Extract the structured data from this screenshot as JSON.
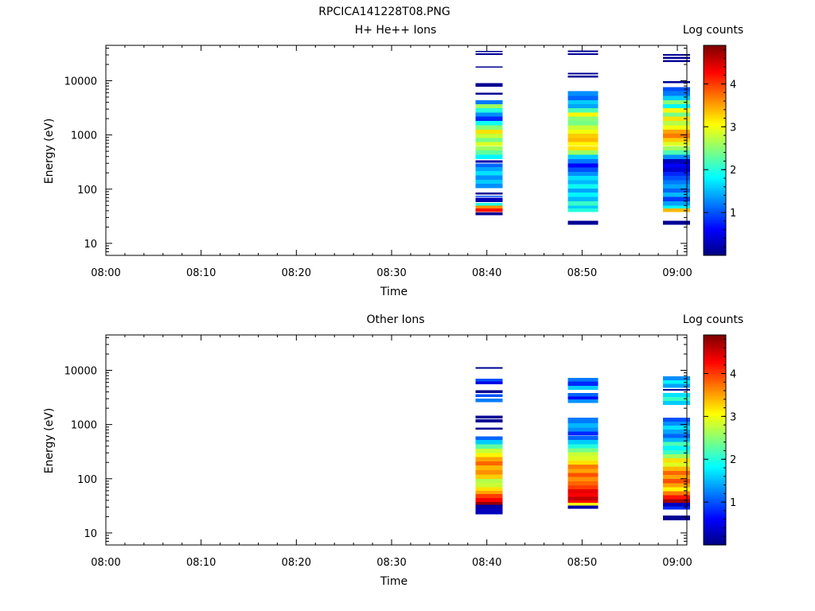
{
  "figure_title": "RPCICA141228T08.PNG",
  "colors": {
    "jet": [
      "#00007f",
      "#0000ff",
      "#007fff",
      "#00ffff",
      "#7fff7f",
      "#ffff00",
      "#ff7f00",
      "#ff0000",
      "#7f0000"
    ],
    "axis": "#000000",
    "background": "#ffffff"
  },
  "chart_data": [
    {
      "type": "heatmap",
      "title": "H+ He++ Ions",
      "xlabel": "Time",
      "ylabel": "Energy (eV)",
      "colorbar_label": "Log counts",
      "log_y": true,
      "xlim": [
        "08:00",
        "09:01"
      ],
      "ylim": [
        6,
        45000
      ],
      "clim": [
        0,
        4.9
      ],
      "x_ticks": [
        "08:00",
        "08:10",
        "08:20",
        "08:30",
        "08:40",
        "08:50",
        "09:00"
      ],
      "y_ticks": [
        10,
        100,
        1000,
        10000
      ],
      "y_tick_labels": [
        "10",
        "100",
        "1000",
        "10000"
      ],
      "colorbar_ticks": [
        1,
        2,
        3,
        4
      ],
      "colorbar_tick_labels": [
        "1",
        "2",
        "3",
        "4"
      ],
      "columns": [
        {
          "time_start": "08:38:50",
          "time_end": "08:41:40",
          "bins": [
            [
              33,
              37,
              0.1
            ],
            [
              38,
              44,
              4.2
            ],
            [
              44,
              50,
              3.6
            ],
            [
              50,
              56,
              2.0
            ],
            [
              58,
              63,
              0.2
            ],
            [
              63,
              70,
              0.3
            ],
            [
              72,
              76,
              1.0
            ],
            [
              80,
              86,
              0.1
            ],
            [
              105,
              125,
              1.3
            ],
            [
              125,
              150,
              1.6
            ],
            [
              150,
              180,
              1.3
            ],
            [
              180,
              215,
              1.7
            ],
            [
              215,
              255,
              1.4
            ],
            [
              255,
              300,
              1.1
            ],
            [
              305,
              340,
              0.2
            ],
            [
              360,
              430,
              1.8
            ],
            [
              430,
              520,
              2.3
            ],
            [
              520,
              620,
              2.6
            ],
            [
              620,
              740,
              2.9
            ],
            [
              740,
              880,
              2.4
            ],
            [
              880,
              1050,
              2.8
            ],
            [
              1050,
              1250,
              3.2
            ],
            [
              1250,
              1500,
              2.5
            ],
            [
              1500,
              1800,
              1.9
            ],
            [
              1800,
              2200,
              0.8
            ],
            [
              2200,
              2600,
              1.3
            ],
            [
              2600,
              3100,
              2.0
            ],
            [
              3100,
              3700,
              2.6
            ],
            [
              3700,
              4400,
              1.2
            ],
            [
              5500,
              6000,
              0.1
            ],
            [
              7800,
              9000,
              0.1
            ],
            [
              17500,
              18500,
              0.1
            ],
            [
              30000,
              32000,
              0.1
            ],
            [
              33500,
              35500,
              0.1
            ]
          ]
        },
        {
          "time_start": "08:48:30",
          "time_end": "08:51:40",
          "bins": [
            [
              22,
              26,
              0.1
            ],
            [
              38,
              44,
              2.0
            ],
            [
              44,
              50,
              1.6
            ],
            [
              50,
              60,
              2.1
            ],
            [
              60,
              72,
              1.5
            ],
            [
              72,
              86,
              1.8
            ],
            [
              86,
              103,
              1.4
            ],
            [
              103,
              123,
              1.9
            ],
            [
              123,
              147,
              1.5
            ],
            [
              147,
              176,
              1.7
            ],
            [
              176,
              210,
              1.3
            ],
            [
              210,
              252,
              1.0
            ],
            [
              252,
              300,
              0.6
            ],
            [
              300,
              360,
              1.2
            ],
            [
              360,
              430,
              1.6
            ],
            [
              430,
              520,
              2.6
            ],
            [
              520,
              620,
              3.2
            ],
            [
              620,
              740,
              3.1
            ],
            [
              740,
              880,
              3.4
            ],
            [
              880,
              1050,
              3.3
            ],
            [
              1050,
              1250,
              3.0
            ],
            [
              1250,
              1500,
              2.8
            ],
            [
              1500,
              1800,
              2.4
            ],
            [
              1800,
              2200,
              2.5
            ],
            [
              2200,
              2600,
              3.1
            ],
            [
              2600,
              3100,
              2.2
            ],
            [
              3100,
              3700,
              1.4
            ],
            [
              3700,
              4400,
              1.6
            ],
            [
              4400,
              5300,
              1.1
            ],
            [
              5300,
              6400,
              1.3
            ],
            [
              11500,
              12500,
              0.1
            ],
            [
              13000,
              14000,
              0.1
            ],
            [
              30000,
              32000,
              0.1
            ],
            [
              34000,
              36000,
              0.1
            ]
          ]
        },
        {
          "time_start": "08:58:30",
          "time_end": "09:01:20",
          "bins": [
            [
              22,
              26,
              0.1
            ],
            [
              38,
              44,
              3.4
            ],
            [
              44,
              50,
              1.8
            ],
            [
              50,
              60,
              1.4
            ],
            [
              60,
              72,
              0.9
            ],
            [
              72,
              86,
              1.5
            ],
            [
              86,
              103,
              1.1
            ],
            [
              103,
              123,
              1.4
            ],
            [
              123,
              147,
              1.2
            ],
            [
              147,
              176,
              1.0
            ],
            [
              176,
              210,
              0.8
            ],
            [
              210,
              252,
              0.4
            ],
            [
              252,
              300,
              0.6
            ],
            [
              300,
              360,
              0.3
            ],
            [
              360,
              430,
              1.3
            ],
            [
              430,
              520,
              2.2
            ],
            [
              520,
              620,
              2.6
            ],
            [
              620,
              740,
              2.9
            ],
            [
              740,
              880,
              3.3
            ],
            [
              880,
              1050,
              3.7
            ],
            [
              1050,
              1250,
              3.5
            ],
            [
              1250,
              1500,
              3.0
            ],
            [
              1500,
              1800,
              2.7
            ],
            [
              1800,
              2200,
              3.2
            ],
            [
              2200,
              2600,
              2.4
            ],
            [
              2600,
              3100,
              3.1
            ],
            [
              3100,
              3700,
              1.8
            ],
            [
              3700,
              4400,
              2.5
            ],
            [
              4400,
              5300,
              1.6
            ],
            [
              5300,
              6400,
              1.2
            ],
            [
              6400,
              7600,
              1.0
            ],
            [
              9000,
              9800,
              0.1
            ],
            [
              22000,
              24000,
              0.1
            ],
            [
              25500,
              27500,
              0.1
            ],
            [
              29000,
              31000,
              0.1
            ]
          ]
        }
      ]
    },
    {
      "type": "heatmap",
      "title": "Other Ions",
      "xlabel": "Time",
      "ylabel": "Energy (eV)",
      "colorbar_label": "Log counts",
      "log_y": true,
      "xlim": [
        "08:00",
        "09:01"
      ],
      "ylim": [
        6,
        45000
      ],
      "clim": [
        0,
        4.9
      ],
      "x_ticks": [
        "08:00",
        "08:10",
        "08:20",
        "08:30",
        "08:40",
        "08:50",
        "09:00"
      ],
      "y_ticks": [
        10,
        100,
        1000,
        10000
      ],
      "y_tick_labels": [
        "10",
        "100",
        "1000",
        "10000"
      ],
      "colorbar_ticks": [
        1,
        2,
        3,
        4
      ],
      "colorbar_tick_labels": [
        "1",
        "2",
        "3",
        "4"
      ],
      "columns": [
        {
          "time_start": "08:38:50",
          "time_end": "08:41:40",
          "bins": [
            [
              22,
              28,
              0.3
            ],
            [
              28,
              33,
              0.2
            ],
            [
              33,
              37,
              4.8
            ],
            [
              37,
              44,
              4.3
            ],
            [
              44,
              52,
              4.0
            ],
            [
              52,
              60,
              3.5
            ],
            [
              60,
              70,
              3.2
            ],
            [
              70,
              84,
              2.8
            ],
            [
              84,
              100,
              2.7
            ],
            [
              100,
              120,
              3.3
            ],
            [
              120,
              145,
              3.6
            ],
            [
              145,
              175,
              3.4
            ],
            [
              175,
              210,
              3.8
            ],
            [
              210,
              250,
              3.5
            ],
            [
              250,
              300,
              3.1
            ],
            [
              300,
              360,
              2.8
            ],
            [
              360,
              430,
              2.3
            ],
            [
              430,
              520,
              1.6
            ],
            [
              520,
              600,
              1.1
            ],
            [
              800,
              880,
              0.1
            ],
            [
              1100,
              1250,
              0.1
            ],
            [
              1300,
              1450,
              0.1
            ],
            [
              2600,
              3000,
              1.2
            ],
            [
              3200,
              3600,
              1.0
            ],
            [
              3800,
              4300,
              0.1
            ],
            [
              5500,
              6200,
              0.5
            ],
            [
              6200,
              7000,
              1.0
            ],
            [
              10800,
              11500,
              0.1
            ]
          ]
        },
        {
          "time_start": "08:48:30",
          "time_end": "08:51:40",
          "bins": [
            [
              28,
              32,
              0.2
            ],
            [
              32,
              36,
              3.0
            ],
            [
              36,
              40,
              4.3
            ],
            [
              40,
              46,
              4.6
            ],
            [
              46,
              54,
              4.3
            ],
            [
              54,
              64,
              4.4
            ],
            [
              64,
              76,
              4.0
            ],
            [
              76,
              90,
              3.8
            ],
            [
              90,
              108,
              3.6
            ],
            [
              108,
              128,
              3.9
            ],
            [
              128,
              152,
              3.5
            ],
            [
              152,
              182,
              3.7
            ],
            [
              182,
              216,
              3.2
            ],
            [
              216,
              258,
              2.9
            ],
            [
              258,
              306,
              2.8
            ],
            [
              306,
              365,
              2.4
            ],
            [
              365,
              435,
              2.0
            ],
            [
              435,
              520,
              1.6
            ],
            [
              520,
              620,
              1.1
            ],
            [
              620,
              740,
              0.8
            ],
            [
              740,
              880,
              1.3
            ],
            [
              880,
              1050,
              1.5
            ],
            [
              1050,
              1350,
              1.2
            ],
            [
              2500,
              2900,
              1.3
            ],
            [
              2900,
              3300,
              0.6
            ],
            [
              3300,
              3800,
              1.1
            ],
            [
              4400,
              5200,
              1.6
            ],
            [
              5200,
              6200,
              0.8
            ],
            [
              6200,
              7200,
              1.2
            ]
          ]
        },
        {
          "time_start": "08:58:30",
          "time_end": "09:01:20",
          "bins": [
            [
              17,
              21,
              0.1
            ],
            [
              27,
              31,
              0.8
            ],
            [
              31,
              36,
              0.3
            ],
            [
              36,
              42,
              4.7
            ],
            [
              42,
              50,
              4.2
            ],
            [
              50,
              59,
              3.7
            ],
            [
              59,
              70,
              3.1
            ],
            [
              70,
              83,
              3.5
            ],
            [
              83,
              99,
              3.9
            ],
            [
              99,
              118,
              3.5
            ],
            [
              118,
              140,
              3.8
            ],
            [
              140,
              167,
              3.4
            ],
            [
              167,
              199,
              2.9
            ],
            [
              199,
              237,
              3.2
            ],
            [
              237,
              282,
              2.6
            ],
            [
              282,
              336,
              2.1
            ],
            [
              336,
              400,
              1.8
            ],
            [
              400,
              476,
              2.2
            ],
            [
              476,
              567,
              1.5
            ],
            [
              567,
              675,
              1.1
            ],
            [
              675,
              804,
              1.4
            ],
            [
              804,
              957,
              1.7
            ],
            [
              957,
              1140,
              1.3
            ],
            [
              1140,
              1350,
              1.0
            ],
            [
              2300,
              2700,
              1.6
            ],
            [
              2700,
              3200,
              2.1
            ],
            [
              3200,
              3800,
              1.7
            ],
            [
              4200,
              4500,
              0.1
            ],
            [
              4800,
              5600,
              1.4
            ],
            [
              5600,
              6600,
              1.8
            ],
            [
              6600,
              7700,
              1.3
            ]
          ]
        }
      ]
    }
  ]
}
